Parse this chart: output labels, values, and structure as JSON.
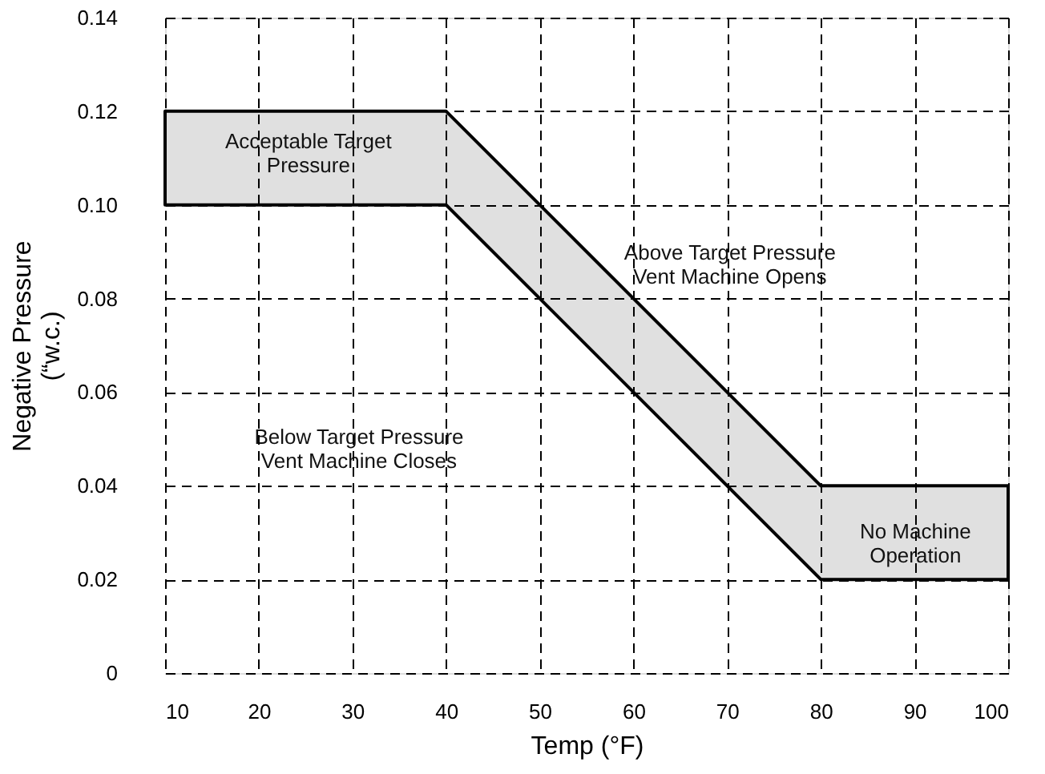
{
  "chart_data": {
    "type": "area",
    "xlabel": "Temp (°F)",
    "ylabel": "Negative Pressure\n(“w.c.)",
    "x": [
      10,
      40,
      80,
      100
    ],
    "stacked": true,
    "series": [
      {
        "color": "#ffffff",
        "values": [
          0.1,
          0.1,
          0.02,
          0.02
        ]
      },
      {
        "color": "#e0e0e0",
        "values": [
          0.02,
          0.02,
          0.02,
          0.02
        ]
      }
    ],
    "xlim": [
      10,
      100
    ],
    "xticks": [
      10,
      20,
      30,
      40,
      50,
      60,
      70,
      80,
      90,
      100
    ],
    "ylim": [
      0,
      0.14
    ],
    "yticks": [
      0,
      {
        "value": 0.02,
        "label": "0.02"
      },
      {
        "value": 0.04,
        "label": "0.04"
      },
      {
        "value": 0.06,
        "label": "0.06"
      },
      {
        "value": 0.08,
        "label": "0.08"
      },
      {
        "value": 0.1,
        "label": "0.10"
      },
      {
        "value": 0.12,
        "label": "0.12"
      },
      {
        "value": 0.14,
        "label": "0.14"
      }
    ],
    "grid": true,
    "line_style": "dashed",
    "annotations": [
      "Acceptable Target\nPressure",
      "Above Target Pressure\nVent Machine Opens",
      "Below Target Pressure\nVent Machine Closes",
      "No Machine\nOperation"
    ]
  }
}
